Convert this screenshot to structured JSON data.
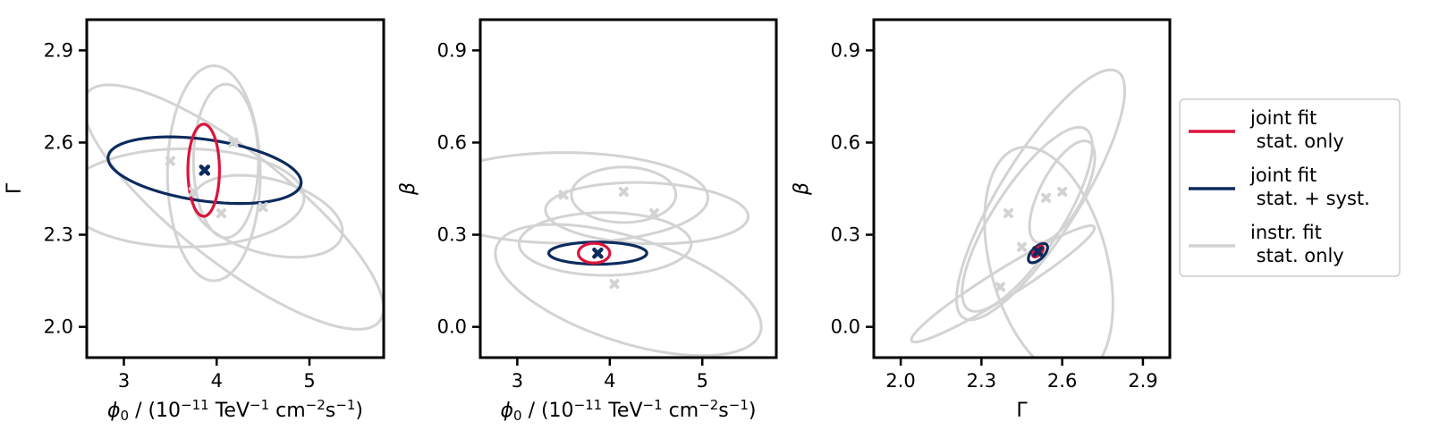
{
  "colors": {
    "joint_stat": "#dc143c",
    "joint_syst": "#0d2b5e",
    "instr": "#d3d3d3",
    "marker_joint": "#0d2b5e",
    "marker_instr": "#d3d3d3"
  },
  "legend": {
    "placement": "right",
    "entries": [
      {
        "key": "joint_stat",
        "line1": "joint fit",
        "line2": " stat. only"
      },
      {
        "key": "joint_syst",
        "line1": "joint fit",
        "line2": " stat. + syst."
      },
      {
        "key": "instr",
        "line1": "instr. fit",
        "line2": " stat. only"
      }
    ]
  },
  "chart_data": [
    {
      "type": "scatter",
      "id": "phi-gamma",
      "xlabel": "ϕ0 / (10−11 TeV−1 cm−2s−1)",
      "xlabel_parts": {
        "sym": "ϕ",
        "sub": "0",
        "pre": " / (10",
        "e1": "−11",
        "u1": " TeV",
        "e2": "−1",
        "u2": " cm",
        "e3": "−2",
        "u3": "s",
        "e4": "−1",
        "post": ")"
      },
      "ylabel": "Γ",
      "xlim": [
        2.6,
        5.8
      ],
      "ylim": [
        1.9,
        3.0
      ],
      "xticks": [
        3,
        4,
        5
      ],
      "xtick_labels": [
        "3",
        "4",
        "5"
      ],
      "yticks": [
        2.0,
        2.3,
        2.6,
        2.9
      ],
      "ytick_labels": [
        "2.0",
        "2.3",
        "2.6",
        "2.9"
      ],
      "grid": false,
      "ellipses": [
        {
          "group": "instr",
          "cx": 3.65,
          "cy": 2.42,
          "rx": 0.53,
          "ry": 0.39,
          "angle": 90
        },
        {
          "group": "instr",
          "cx": 4.18,
          "cy": 2.39,
          "rx": 2.0,
          "ry": 0.18,
          "angle": -38
        },
        {
          "group": "instr",
          "cx": 3.97,
          "cy": 2.5,
          "rx": 0.5,
          "ry": 0.35,
          "angle": 0
        },
        {
          "group": "instr",
          "cx": 4.1,
          "cy": 2.54,
          "rx": 0.35,
          "ry": 0.25,
          "angle": 0
        },
        {
          "group": "instr",
          "cx": 4.55,
          "cy": 2.36,
          "rx": 0.4,
          "ry": 0.25,
          "angle": 75
        },
        {
          "group": "joint_syst",
          "cx": 3.87,
          "cy": 2.51,
          "rx": 1.05,
          "ry": 0.1,
          "angle": -8
        },
        {
          "group": "joint_stat",
          "cx": 3.86,
          "cy": 2.51,
          "rx": 0.17,
          "ry": 0.15,
          "angle": 0
        }
      ],
      "markers": [
        {
          "group": "instr",
          "x": 3.75,
          "y": 2.44
        },
        {
          "group": "instr",
          "x": 3.5,
          "y": 2.54
        },
        {
          "group": "instr",
          "x": 4.18,
          "y": 2.6
        },
        {
          "group": "instr",
          "x": 4.05,
          "y": 2.37
        },
        {
          "group": "instr",
          "x": 4.5,
          "y": 2.39
        },
        {
          "group": "joint",
          "x": 3.87,
          "y": 2.51
        }
      ]
    },
    {
      "type": "scatter",
      "id": "phi-beta",
      "xlabel": "ϕ0 / (10−11 TeV−1 cm−2s−1)",
      "xlabel_parts": {
        "sym": "ϕ",
        "sub": "0",
        "pre": " / (10",
        "e1": "−11",
        "u1": " TeV",
        "e2": "−1",
        "u2": " cm",
        "e3": "−2",
        "u3": "s",
        "e4": "−1",
        "post": ")"
      },
      "ylabel": "β",
      "xlim": [
        2.6,
        5.8
      ],
      "ylim": [
        -0.1,
        1.0
      ],
      "xticks": [
        3,
        4,
        5
      ],
      "xtick_labels": [
        "3",
        "4",
        "5"
      ],
      "yticks": [
        0.0,
        0.3,
        0.6,
        0.9
      ],
      "ytick_labels": [
        "0.0",
        "0.3",
        "0.6",
        "0.9"
      ],
      "grid": false,
      "ellipses": [
        {
          "group": "instr",
          "cx": 3.5,
          "cy": 0.42,
          "rx": 0.49,
          "ry": 0.47,
          "angle": 90
        },
        {
          "group": "instr",
          "cx": 4.2,
          "cy": 0.12,
          "rx": 1.5,
          "ry": 0.17,
          "angle": -18
        },
        {
          "group": "instr",
          "cx": 4.15,
          "cy": 0.43,
          "rx": 0.3,
          "ry": 0.17,
          "angle": 90
        },
        {
          "group": "instr",
          "cx": 4.4,
          "cy": 0.37,
          "rx": 0.33,
          "ry": 0.33,
          "angle": 88
        },
        {
          "group": "instr",
          "cx": 3.95,
          "cy": 0.27,
          "rx": 0.34,
          "ry": 0.28,
          "angle": 90
        },
        {
          "group": "joint_syst",
          "cx": 3.87,
          "cy": 0.24,
          "rx": 0.53,
          "ry": 0.036,
          "angle": 0
        },
        {
          "group": "joint_stat",
          "cx": 3.83,
          "cy": 0.24,
          "rx": 0.17,
          "ry": 0.032,
          "angle": 0
        }
      ],
      "markers": [
        {
          "group": "instr",
          "x": 3.5,
          "y": 0.43
        },
        {
          "group": "instr",
          "x": 4.15,
          "y": 0.44
        },
        {
          "group": "instr",
          "x": 4.48,
          "y": 0.37
        },
        {
          "group": "instr",
          "x": 4.05,
          "y": 0.14
        },
        {
          "group": "joint",
          "x": 3.87,
          "y": 0.24
        }
      ]
    },
    {
      "type": "scatter",
      "id": "gamma-beta",
      "xlabel": "Γ",
      "ylabel": "β",
      "xlim": [
        1.9,
        3.0
      ],
      "ylim": [
        -0.1,
        1.0
      ],
      "xticks": [
        2.0,
        2.3,
        2.6,
        2.9
      ],
      "xtick_labels": [
        "2.0",
        "2.3",
        "2.6",
        "2.9"
      ],
      "yticks": [
        0.0,
        0.3,
        0.6,
        0.9
      ],
      "ytick_labels": [
        "0.0",
        "0.3",
        "0.6",
        "0.9"
      ],
      "grid": false,
      "ellipses": [
        {
          "group": "instr",
          "cx": 2.52,
          "cy": 0.43,
          "rx": 0.54,
          "ry": 0.13,
          "angle": 58
        },
        {
          "group": "instr",
          "cx": 2.38,
          "cy": 0.14,
          "rx": 0.4,
          "ry": 0.045,
          "angle": 32
        },
        {
          "group": "instr",
          "cx": 2.55,
          "cy": 0.21,
          "rx": 0.44,
          "ry": 0.19,
          "angle": 105
        },
        {
          "group": "instr",
          "cx": 2.47,
          "cy": 0.35,
          "rx": 0.4,
          "ry": 0.11,
          "angle": 57
        },
        {
          "group": "instr",
          "cx": 2.6,
          "cy": 0.44,
          "rx": 0.21,
          "ry": 0.07,
          "angle": 62
        },
        {
          "group": "joint_syst",
          "cx": 2.51,
          "cy": 0.24,
          "rx": 0.045,
          "ry": 0.02,
          "angle": 45
        },
        {
          "group": "joint_stat",
          "cx": 2.51,
          "cy": 0.245,
          "rx": 0.025,
          "ry": 0.011,
          "angle": 45
        }
      ],
      "markers": [
        {
          "group": "instr",
          "x": 2.4,
          "y": 0.37
        },
        {
          "group": "instr",
          "x": 2.37,
          "y": 0.13
        },
        {
          "group": "instr",
          "x": 2.45,
          "y": 0.26
        },
        {
          "group": "instr",
          "x": 2.54,
          "y": 0.42
        },
        {
          "group": "instr",
          "x": 2.6,
          "y": 0.44
        },
        {
          "group": "joint",
          "x": 2.51,
          "y": 0.245
        }
      ]
    }
  ]
}
